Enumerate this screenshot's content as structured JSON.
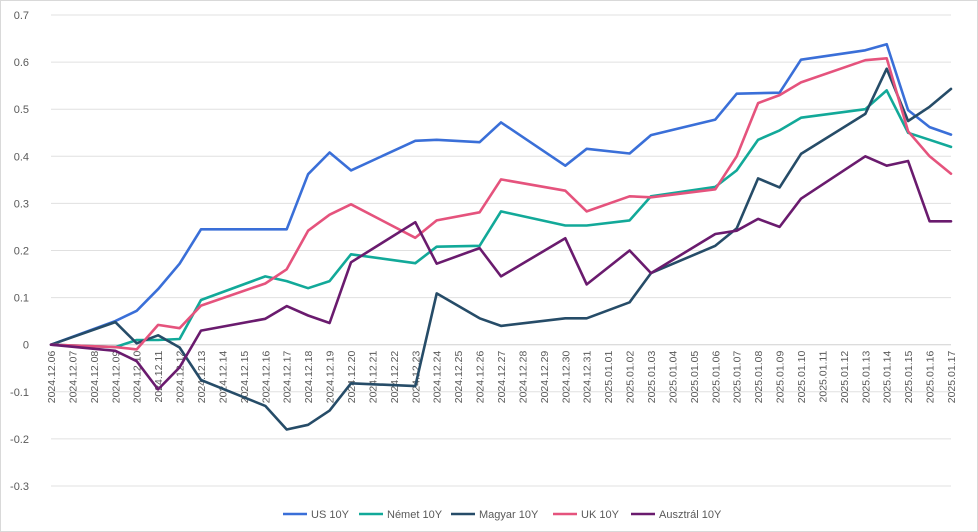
{
  "chart_data": {
    "type": "line",
    "title": "",
    "xlabel": "",
    "ylabel": "",
    "ylim": [
      -0.3,
      0.7
    ],
    "yticks": [
      -0.3,
      -0.2,
      -0.1,
      0,
      0.1,
      0.2,
      0.3,
      0.4,
      0.5,
      0.6,
      0.7
    ],
    "ytick_labels": [
      "-0.3",
      "-0.2",
      "-0.1",
      "0",
      "0.1",
      "0.2",
      "0.3",
      "0.4",
      "0.5",
      "0.6",
      "0.7"
    ],
    "grid": true,
    "legend_position": "bottom",
    "categories": [
      "2024.12.06",
      "2024.12.07",
      "2024.12.08",
      "2024.12.09",
      "2024.12.10",
      "2024.12.11",
      "2024.12.12",
      "2024.12.13",
      "2024.12.14",
      "2024.12.15",
      "2024.12.16",
      "2024.12.17",
      "2024.12.18",
      "2024.12.19",
      "2024.12.20",
      "2024.12.21",
      "2024.12.22",
      "2024.12.23",
      "2024.12.24",
      "2024.12.25",
      "2024.12.26",
      "2024.12.27",
      "2024.12.28",
      "2024.12.29",
      "2024.12.30",
      "2024.12.31",
      "2025.01.01",
      "2025.01.02",
      "2025.01.03",
      "2025.01.04",
      "2025.01.05",
      "2025.01.06",
      "2025.01.07",
      "2025.01.08",
      "2025.01.09",
      "2025.01.10",
      "2025.01.11",
      "2025.01.12",
      "2025.01.13",
      "2025.01.14",
      "2025.01.15",
      "2025.01.16",
      "2025.01.17"
    ],
    "series": [
      {
        "name": "US 10Y",
        "color": "#3a6fd8",
        "points": [
          [
            0,
            0
          ],
          [
            3,
            0.05
          ],
          [
            4,
            0.072
          ],
          [
            5,
            0.118
          ],
          [
            6,
            0.172
          ],
          [
            7,
            0.245
          ],
          [
            11,
            0.245
          ],
          [
            12,
            0.362
          ],
          [
            13,
            0.408
          ],
          [
            14,
            0.37
          ],
          [
            17,
            0.433
          ],
          [
            18,
            0.435
          ],
          [
            20,
            0.43
          ],
          [
            21,
            0.472
          ],
          [
            24,
            0.38
          ],
          [
            25,
            0.416
          ],
          [
            27,
            0.406
          ],
          [
            28,
            0.445
          ],
          [
            31,
            0.478
          ],
          [
            32,
            0.533
          ],
          [
            34,
            0.535
          ],
          [
            35,
            0.605
          ],
          [
            38,
            0.625
          ],
          [
            39,
            0.638
          ],
          [
            40,
            0.498
          ],
          [
            41,
            0.462
          ],
          [
            42,
            0.446
          ]
        ]
      },
      {
        "name": "Német 10Y",
        "color": "#12a999",
        "points": [
          [
            0,
            0
          ],
          [
            3,
            -0.005
          ],
          [
            4,
            0.01
          ],
          [
            5,
            0.01
          ],
          [
            6,
            0.012
          ],
          [
            7,
            0.095
          ],
          [
            10,
            0.145
          ],
          [
            11,
            0.135
          ],
          [
            12,
            0.12
          ],
          [
            13,
            0.135
          ],
          [
            14,
            0.192
          ],
          [
            17,
            0.173
          ],
          [
            18,
            0.208
          ],
          [
            20,
            0.21
          ],
          [
            21,
            0.283
          ],
          [
            24,
            0.253
          ],
          [
            25,
            0.253
          ],
          [
            27,
            0.264
          ],
          [
            28,
            0.315
          ],
          [
            31,
            0.335
          ],
          [
            32,
            0.37
          ],
          [
            33,
            0.435
          ],
          [
            34,
            0.455
          ],
          [
            35,
            0.482
          ],
          [
            38,
            0.5
          ],
          [
            39,
            0.54
          ],
          [
            40,
            0.45
          ],
          [
            41,
            0.435
          ],
          [
            42,
            0.42
          ]
        ]
      },
      {
        "name": "Magyar 10Y",
        "color": "#264c68",
        "points": [
          [
            0,
            0
          ],
          [
            3,
            0.048
          ],
          [
            4,
            0.003
          ],
          [
            5,
            0.02
          ],
          [
            6,
            -0.006
          ],
          [
            7,
            -0.075
          ],
          [
            10,
            -0.13
          ],
          [
            11,
            -0.18
          ],
          [
            12,
            -0.17
          ],
          [
            13,
            -0.14
          ],
          [
            14,
            -0.082
          ],
          [
            17,
            -0.088
          ],
          [
            18,
            0.109
          ],
          [
            20,
            0.056
          ],
          [
            21,
            0.04
          ],
          [
            24,
            0.056
          ],
          [
            25,
            0.056
          ],
          [
            27,
            0.09
          ],
          [
            28,
            0.152
          ],
          [
            31,
            0.21
          ],
          [
            32,
            0.247
          ],
          [
            33,
            0.353
          ],
          [
            34,
            0.334
          ],
          [
            35,
            0.405
          ],
          [
            38,
            0.49
          ],
          [
            39,
            0.586
          ],
          [
            40,
            0.475
          ],
          [
            41,
            0.505
          ],
          [
            42,
            0.543
          ]
        ]
      },
      {
        "name": "UK 10Y",
        "color": "#e5537d",
        "points": [
          [
            0,
            0
          ],
          [
            3,
            -0.005
          ],
          [
            4,
            -0.01
          ],
          [
            5,
            0.042
          ],
          [
            6,
            0.035
          ],
          [
            7,
            0.083
          ],
          [
            10,
            0.13
          ],
          [
            11,
            0.16
          ],
          [
            12,
            0.242
          ],
          [
            13,
            0.276
          ],
          [
            14,
            0.298
          ],
          [
            17,
            0.227
          ],
          [
            18,
            0.264
          ],
          [
            20,
            0.281
          ],
          [
            21,
            0.351
          ],
          [
            24,
            0.327
          ],
          [
            25,
            0.283
          ],
          [
            27,
            0.315
          ],
          [
            28,
            0.313
          ],
          [
            31,
            0.33
          ],
          [
            32,
            0.4
          ],
          [
            33,
            0.513
          ],
          [
            34,
            0.53
          ],
          [
            35,
            0.557
          ],
          [
            38,
            0.604
          ],
          [
            39,
            0.608
          ],
          [
            40,
            0.453
          ],
          [
            41,
            0.4
          ],
          [
            42,
            0.363
          ]
        ]
      },
      {
        "name": "Ausztrál 10Y",
        "color": "#6a1b6e",
        "points": [
          [
            0,
            0
          ],
          [
            3,
            -0.013
          ],
          [
            4,
            -0.035
          ],
          [
            5,
            -0.095
          ],
          [
            6,
            -0.048
          ],
          [
            7,
            0.03
          ],
          [
            10,
            0.055
          ],
          [
            11,
            0.082
          ],
          [
            12,
            0.062
          ],
          [
            13,
            0.046
          ],
          [
            14,
            0.175
          ],
          [
            17,
            0.26
          ],
          [
            18,
            0.172
          ],
          [
            20,
            0.205
          ],
          [
            21,
            0.145
          ],
          [
            24,
            0.226
          ],
          [
            25,
            0.128
          ],
          [
            27,
            0.2
          ],
          [
            28,
            0.152
          ],
          [
            31,
            0.235
          ],
          [
            32,
            0.242
          ],
          [
            33,
            0.267
          ],
          [
            34,
            0.25
          ],
          [
            35,
            0.31
          ],
          [
            38,
            0.4
          ],
          [
            39,
            0.38
          ],
          [
            40,
            0.39
          ],
          [
            41,
            0.262
          ],
          [
            42,
            0.262
          ]
        ]
      }
    ]
  }
}
